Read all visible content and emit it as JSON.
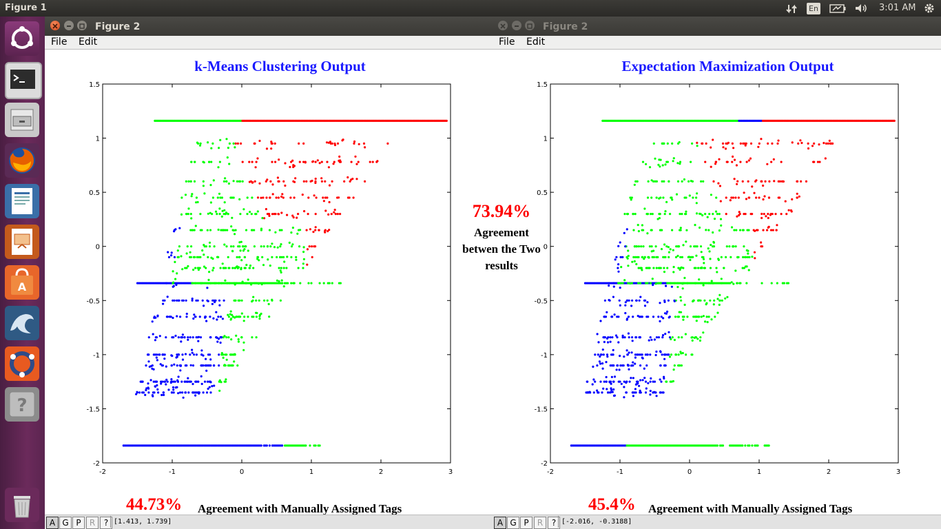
{
  "topbar": {
    "title": "Figure 1",
    "kbd": "En",
    "time": "3:01 AM"
  },
  "launcher": {
    "items": [
      "ubuntu-logo",
      "terminal",
      "file-manager",
      "firefox",
      "writer",
      "impress",
      "software-center",
      "mysql-workbench",
      "ubuntu-one",
      "help"
    ],
    "trash": "trash"
  },
  "windows": [
    {
      "title": "Figure 2",
      "menu": [
        "File",
        "Edit"
      ],
      "chart": {
        "title": "k-Means Clustering Output",
        "footer_pct": "44.73%",
        "footer_text": "Agreement with Manually Assigned Tags"
      },
      "status": {
        "buttons": [
          "A",
          "G",
          "P",
          "R",
          "?"
        ],
        "coords": "[1.413, 1.739]"
      }
    },
    {
      "title": "Figure 2",
      "menu": [
        "File",
        "Edit"
      ],
      "chart": {
        "title": "Expectation Maximization Output",
        "footer_pct": "45.4%",
        "footer_text": "Agreement with Manually Assigned Tags"
      },
      "status": {
        "buttons": [
          "A",
          "G",
          "P",
          "R",
          "?"
        ],
        "coords": "[-2.016, -0.3188]"
      }
    }
  ],
  "center": {
    "pct": "73.94%",
    "line1": "Agreement",
    "line2": "betwen the Two",
    "line3": "results"
  },
  "chart_data": [
    {
      "type": "scatter",
      "title": "k-Means Clustering Output",
      "xlim": [
        -2,
        3
      ],
      "ylim": [
        -2,
        1.5
      ],
      "x_ticks": [
        "-2",
        "-1",
        "0",
        "1",
        "2",
        "3"
      ],
      "y_ticks": [
        "1.5",
        "1",
        "0.5",
        "0",
        "-0.5",
        "-1",
        "-1.5",
        "-2"
      ],
      "series_colors": [
        "#00ff00",
        "#0000ff",
        "#ff0000"
      ]
    },
    {
      "type": "scatter",
      "title": "Expectation Maximization Output",
      "xlim": [
        -2,
        3
      ],
      "ylim": [
        -2,
        1.5
      ],
      "x_ticks": [
        "-2",
        "-1",
        "0",
        "1",
        "2",
        "3"
      ],
      "y_ticks": [
        "1.5",
        "1",
        "0.5",
        "0",
        "-0.5",
        "-1",
        "-1.5",
        "-2"
      ],
      "series_colors": [
        "#00ff00",
        "#0000ff",
        "#ff0000"
      ]
    }
  ]
}
